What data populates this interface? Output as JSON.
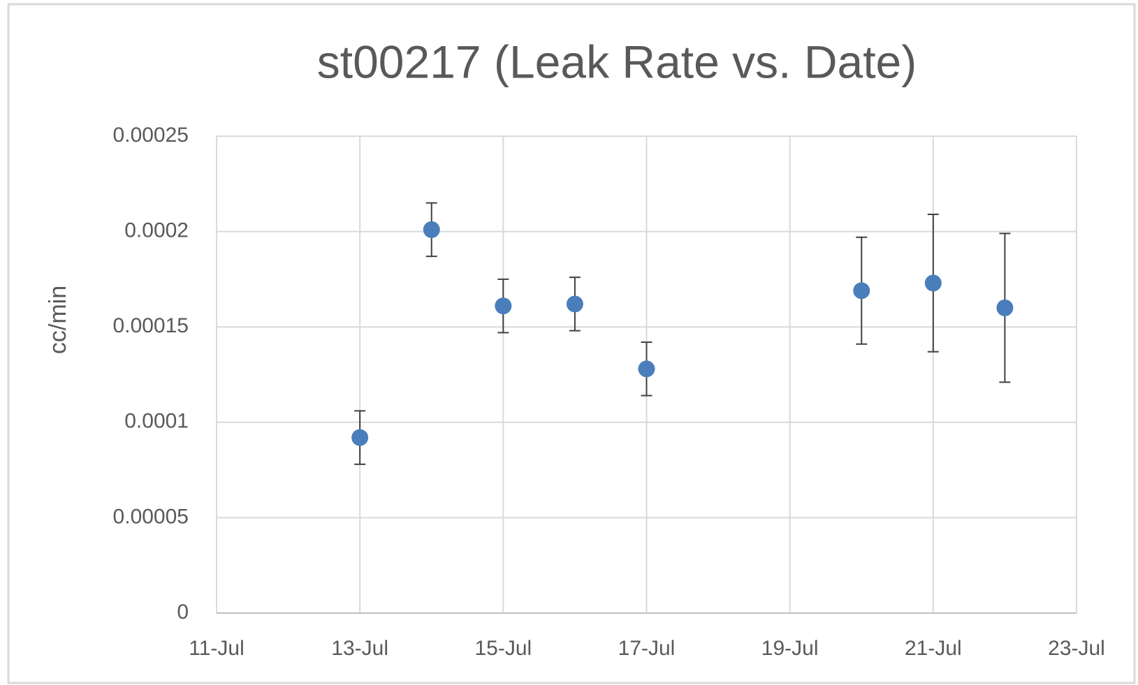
{
  "chart_data": {
    "type": "scatter",
    "title": "st00217 (Leak Rate vs. Date)",
    "y_label": "cc/min",
    "x": [
      13,
      14,
      15,
      16,
      17,
      20,
      21,
      22
    ],
    "y": [
      9.2e-05,
      0.000201,
      0.000161,
      0.000162,
      0.000128,
      0.000169,
      0.000173,
      0.00016
    ],
    "yerr": [
      1.4e-05,
      1.4e-05,
      1.4e-05,
      1.4e-05,
      1.4e-05,
      2.8e-05,
      3.6e-05,
      3.9e-05
    ],
    "color": "#4a7ebb",
    "error_color": "#404040",
    "xlim": [
      11,
      23
    ],
    "xticks": [
      {
        "value": 11,
        "label": "11-Jul"
      },
      {
        "value": 13,
        "label": "13-Jul"
      },
      {
        "value": 15,
        "label": "15-Jul"
      },
      {
        "value": 17,
        "label": "17-Jul"
      },
      {
        "value": 19,
        "label": "19-Jul"
      },
      {
        "value": 21,
        "label": "21-Jul"
      },
      {
        "value": 23,
        "label": "23-Jul"
      }
    ],
    "ylim": [
      0,
      0.00025
    ],
    "yticks": [
      0,
      5e-05,
      0.0001,
      0.00015,
      0.0002,
      0.00025
    ],
    "grid": true
  }
}
